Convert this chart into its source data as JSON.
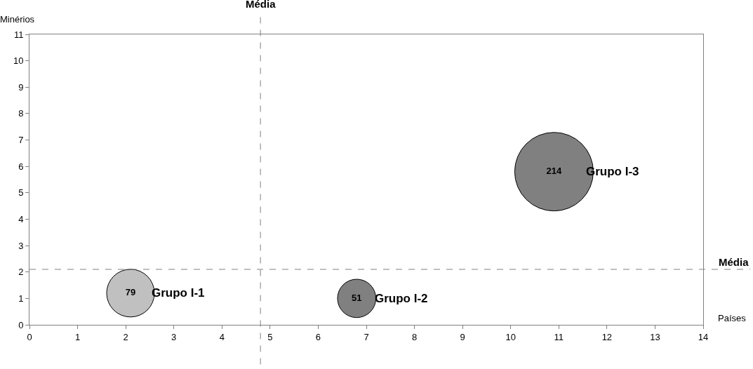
{
  "chart_data": {
    "type": "bubble",
    "xlabel": "Países",
    "ylabel": "Minérios",
    "xlim": [
      0,
      14
    ],
    "xticks": [
      0,
      1,
      2,
      3,
      4,
      5,
      6,
      7,
      8,
      9,
      10,
      11,
      12,
      13,
      14
    ],
    "ylim": [
      0,
      11
    ],
    "yticks": [
      0,
      1,
      2,
      3,
      4,
      5,
      6,
      7,
      8,
      9,
      10,
      11
    ],
    "grid": false,
    "legend": false,
    "series": [
      {
        "name": "Grupo I-1",
        "color": "#c0c0c0",
        "x": [
          2.1
        ],
        "values": [
          1.2
        ],
        "sizes": [
          79
        ],
        "value_labels": [
          "79"
        ]
      },
      {
        "name": "Grupo I-2",
        "color": "#808080",
        "x": [
          6.8
        ],
        "values": [
          1.0
        ],
        "sizes": [
          51
        ],
        "value_labels": [
          "51"
        ]
      },
      {
        "name": "Grupo I-3",
        "color": "#808080",
        "x": [
          10.9
        ],
        "values": [
          5.8
        ],
        "sizes": [
          214
        ],
        "value_labels": [
          "214"
        ]
      }
    ],
    "ref_lines": [
      {
        "axis": "x",
        "value": 4.8,
        "label": "Média",
        "color": "#808080",
        "line_style": "dashed"
      },
      {
        "axis": "y",
        "value": 2.1,
        "label": "Média",
        "color": "#808080",
        "line_style": "dashed"
      }
    ]
  }
}
